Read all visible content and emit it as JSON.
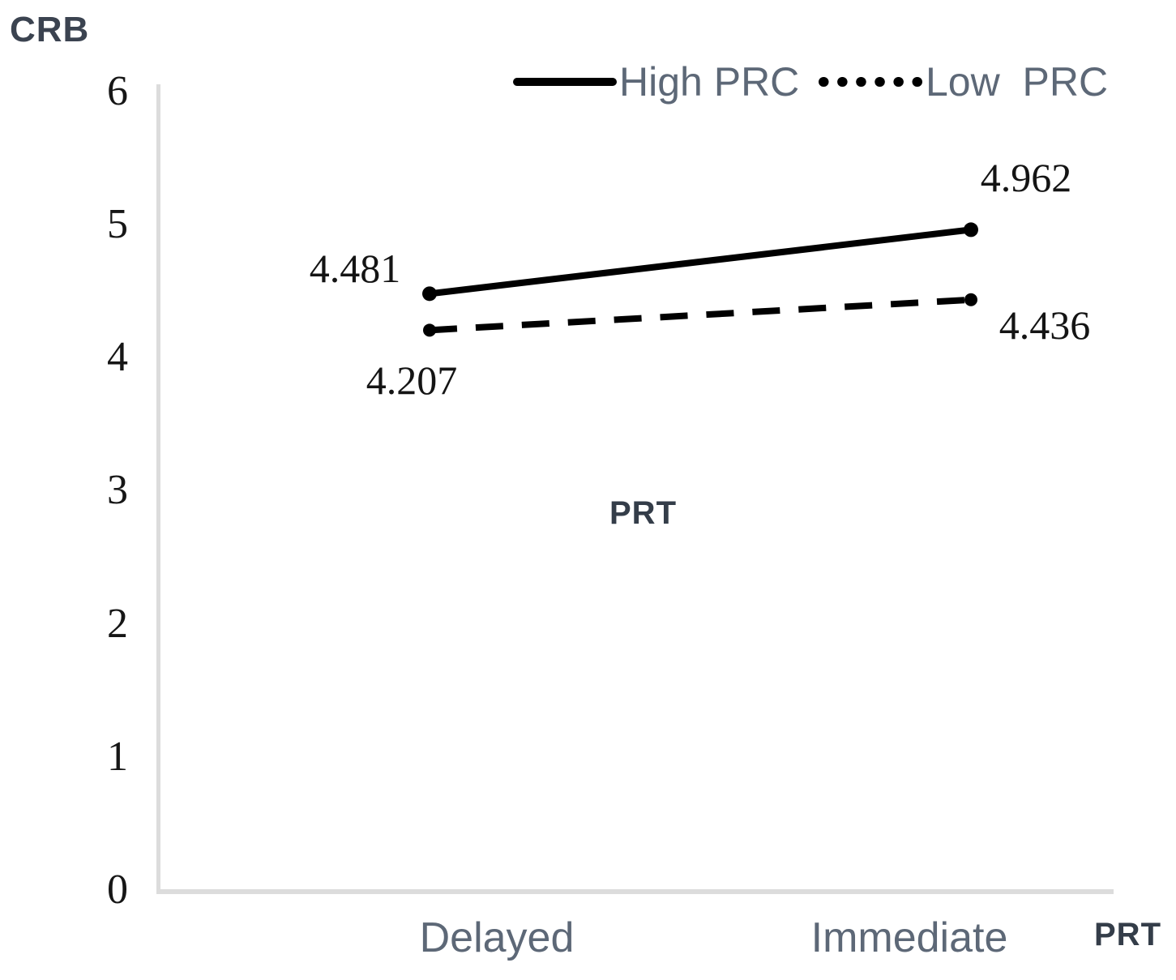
{
  "chart_data": {
    "type": "line",
    "title": "",
    "ylabel": "CRB",
    "xlabel_annotation": "PRT",
    "plot_annotation": "PRT",
    "categories": [
      "Delayed",
      "Immediate"
    ],
    "series": [
      {
        "name": "High PRC",
        "line_style": "solid",
        "values": [
          4.481,
          4.962
        ],
        "labels": [
          "4.481",
          "4.962"
        ]
      },
      {
        "name": "Low  PRC",
        "line_style": "dashed",
        "values": [
          4.207,
          4.436
        ],
        "labels": [
          "4.207",
          "4.436"
        ]
      }
    ],
    "ylim": [
      0,
      6
    ],
    "yticks": [
      "0",
      "1",
      "2",
      "3",
      "4",
      "5",
      "6"
    ],
    "legend_position": "top",
    "grid": false
  },
  "colors": {
    "series_line": "#000000",
    "axis_line": "#dcdcdc",
    "category_text": "#5d6877",
    "tick_text": "#161616",
    "data_label_text": "#141414",
    "annotation_text": "#343d49"
  }
}
